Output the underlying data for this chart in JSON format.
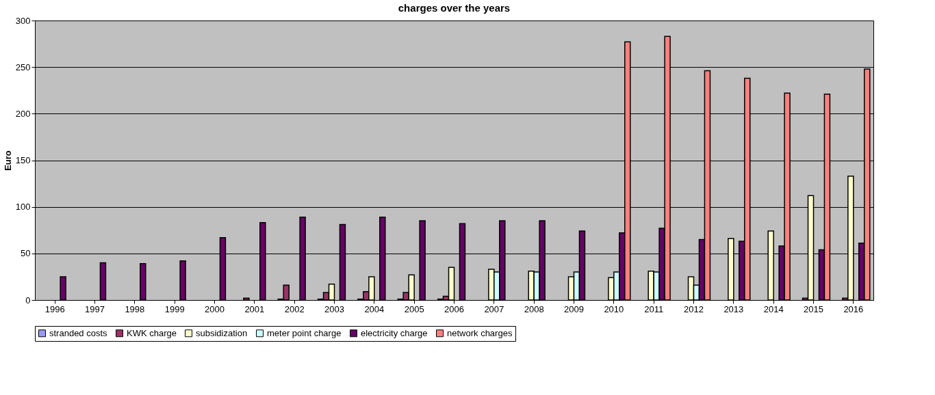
{
  "chart_data": {
    "type": "bar",
    "title": "charges over the years",
    "ylabel": "Euro",
    "categories": [
      "1996",
      "1997",
      "1998",
      "1999",
      "2000",
      "2001",
      "2002",
      "2003",
      "2004",
      "2005",
      "2006",
      "2007",
      "2008",
      "2009",
      "2010",
      "2011",
      "2012",
      "2013",
      "2014",
      "2015",
      "2016"
    ],
    "series": [
      {
        "name": "stranded costs",
        "color": "#9999ff",
        "values": [
          null,
          null,
          null,
          null,
          null,
          null,
          1,
          1,
          1,
          1,
          1,
          null,
          null,
          null,
          null,
          null,
          null,
          null,
          null,
          null,
          null
        ]
      },
      {
        "name": "KWK charge",
        "color": "#993366",
        "values": [
          null,
          null,
          null,
          null,
          null,
          2,
          16,
          8,
          9,
          8,
          4,
          null,
          null,
          null,
          null,
          null,
          null,
          null,
          null,
          2,
          2
        ]
      },
      {
        "name": "subsidization",
        "color": "#ffffcc",
        "values": [
          null,
          null,
          null,
          null,
          null,
          null,
          null,
          17,
          25,
          27,
          35,
          33,
          31,
          25,
          24,
          31,
          25,
          66,
          74,
          112,
          133
        ]
      },
      {
        "name": "meter point charge",
        "color": "#ccffff",
        "values": [
          null,
          null,
          null,
          null,
          null,
          null,
          null,
          null,
          null,
          null,
          null,
          30,
          30,
          30,
          30,
          30,
          16,
          null,
          null,
          null,
          null
        ]
      },
      {
        "name": "electricity charge",
        "color": "#660066",
        "values": [
          25,
          40,
          39,
          42,
          67,
          83,
          89,
          81,
          89,
          85,
          82,
          85,
          85,
          74,
          72,
          77,
          65,
          63,
          58,
          54,
          61
        ]
      },
      {
        "name": "network charges",
        "color": "#ff8080",
        "values": [
          null,
          null,
          null,
          null,
          null,
          null,
          null,
          null,
          null,
          null,
          null,
          null,
          null,
          null,
          277,
          283,
          246,
          238,
          222,
          221,
          248
        ]
      }
    ],
    "ylim": [
      0,
      300
    ],
    "yticks": [
      0,
      50,
      100,
      150,
      200,
      250,
      300
    ],
    "grid": "y",
    "legend": "bottom"
  }
}
